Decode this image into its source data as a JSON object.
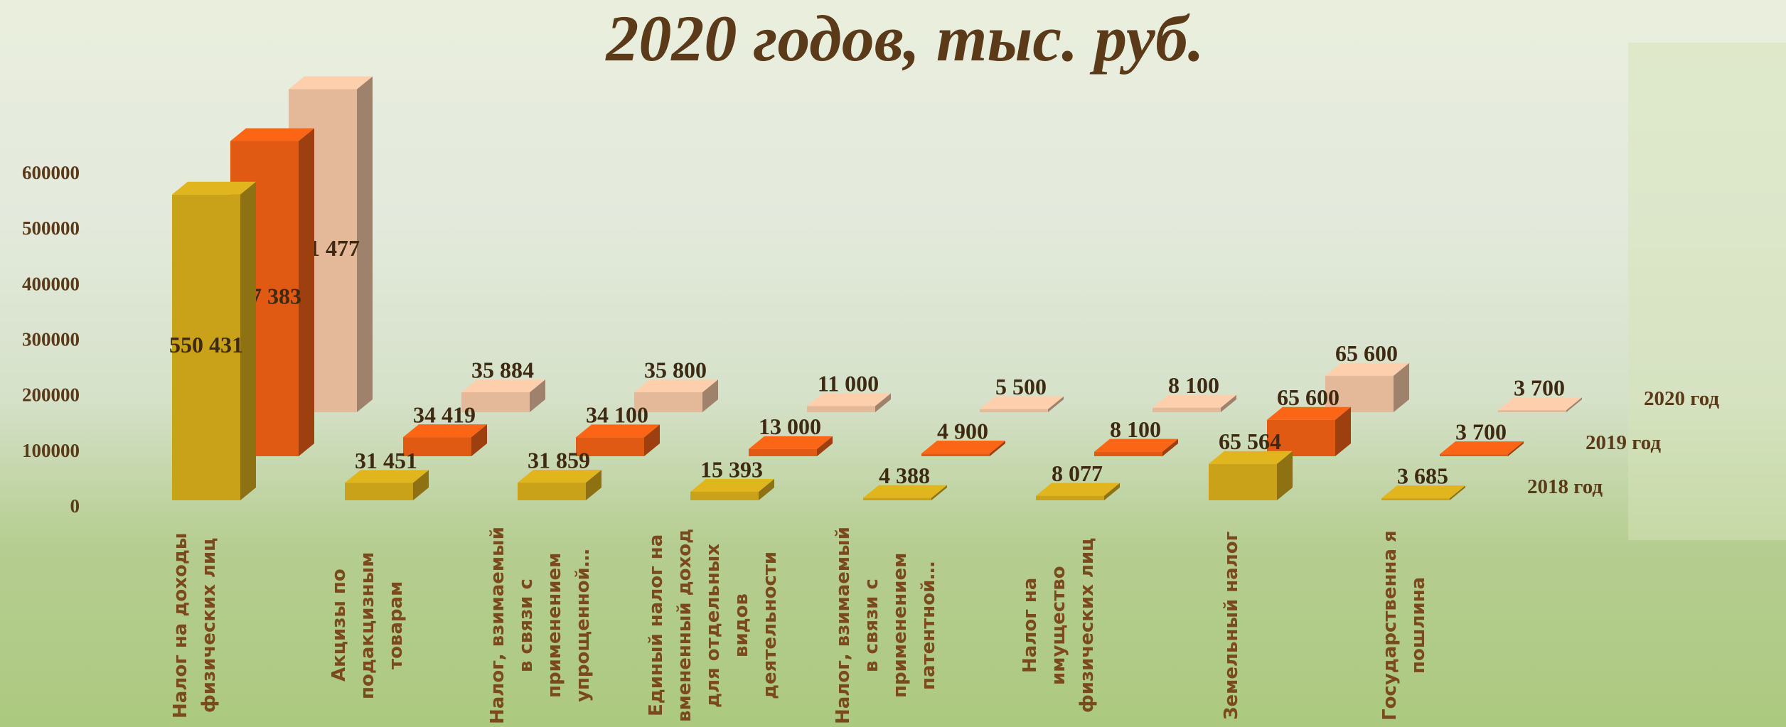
{
  "chart_data": {
    "type": "bar3d",
    "title": "2020 годов, тыс. руб.",
    "categories": [
      "Налог на доходы физических лиц",
      "Акцизы по подакцизным товарам",
      "Налог, взимаемый в связи с применением упрощенной…",
      "Единый налог на вмененный доход для отдельных видов деятельности",
      "Налог, взимаемый в связи с применением патентной…",
      "Налог на имущество физических лиц",
      "Земельный налог",
      "Государственна я пошлина"
    ],
    "series": [
      {
        "name": "2018 год",
        "color": "#c9a21a",
        "values": [
          550431,
          31451,
          31859,
          15393,
          4388,
          8077,
          65564,
          3685
        ],
        "value_labels": [
          "550 431",
          "31 451",
          "31 859",
          "15 393",
          "4 388",
          "8 077",
          "65 564",
          "3 685"
        ]
      },
      {
        "name": "2019 год",
        "color": "#e05a14",
        "values": [
          567383,
          34419,
          34100,
          13000,
          4900,
          8100,
          65600,
          3700
        ],
        "value_labels": [
          "567 383",
          "34 419",
          "34 100",
          "13 000",
          "4 900",
          "8 100",
          "65 600",
          "3 700"
        ]
      },
      {
        "name": "2020 год",
        "color": "#e3b99a",
        "values": [
          581477,
          35884,
          35800,
          11000,
          5500,
          8100,
          65600,
          3700
        ],
        "value_labels": [
          "581 477",
          "35 884",
          "35 800",
          "11 000",
          "5 500",
          "8 100",
          "65 600",
          "3 700"
        ]
      }
    ],
    "ylim": [
      0,
      600000
    ],
    "yticks": [
      0,
      100000,
      200000,
      300000,
      400000,
      500000,
      600000
    ]
  }
}
